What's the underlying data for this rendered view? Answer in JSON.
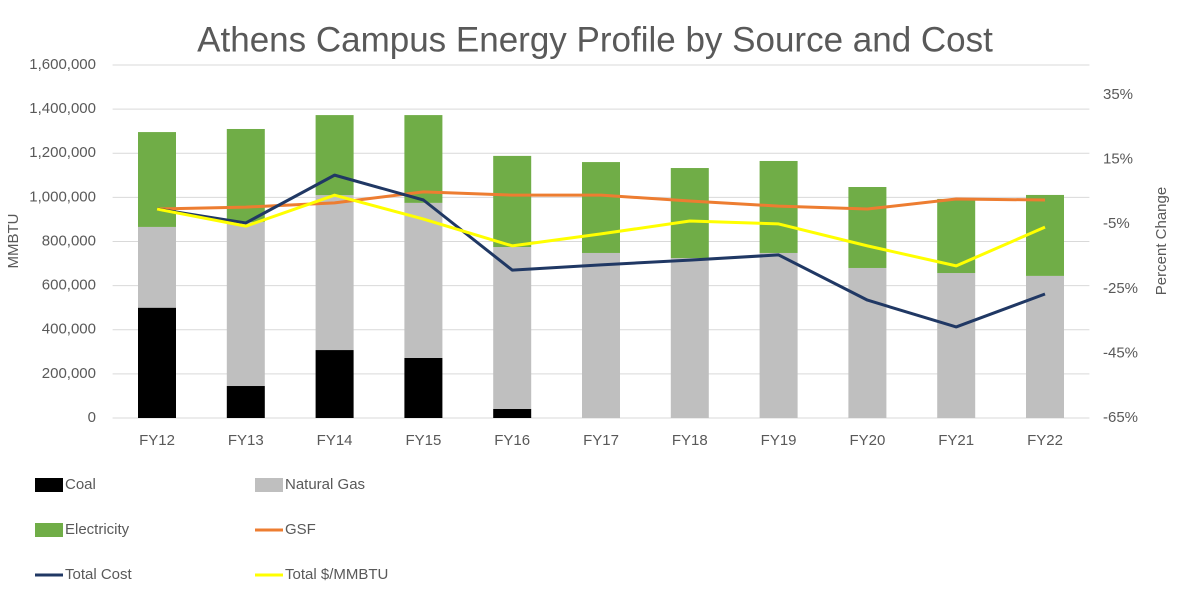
{
  "chart_data": {
    "type": "combo",
    "title": "Athens Campus Energy Profile by Source and Cost",
    "y_label": "MMBTU",
    "y2_label": "Percent Change",
    "categories": [
      "FY12",
      "FY13",
      "FY14",
      "FY15",
      "FY16",
      "FY17",
      "FY18",
      "FY19",
      "FY20",
      "FY21",
      "FY22"
    ],
    "series": [
      {
        "name": "Coal",
        "type": "bar",
        "color": "#000000",
        "values": [
          500000,
          145000,
          308000,
          272000,
          41000,
          0,
          0,
          0,
          0,
          0,
          0
        ]
      },
      {
        "name": "Natural Gas",
        "type": "bar",
        "color": "#bfbfbf",
        "values": [
          366000,
          743000,
          702000,
          703000,
          734000,
          748000,
          725000,
          748000,
          680000,
          657000,
          644000
        ]
      },
      {
        "name": "Electricity",
        "type": "bar",
        "color": "#70ad47",
        "values": [
          430000,
          422000,
          363000,
          398000,
          413000,
          412000,
          408000,
          417000,
          367000,
          336000,
          367000
        ]
      },
      {
        "name": "GSF",
        "type": "line",
        "axis": "y2",
        "color": "#ed7d31",
        "values": [
          -0.3,
          0.3,
          1.6,
          5.0,
          4.0,
          4.0,
          2.2,
          0.6,
          -0.3,
          2.8,
          2.5
        ]
      },
      {
        "name": "Total Cost",
        "type": "line",
        "axis": "y2",
        "color": "#203864",
        "values": [
          -0.3,
          -4.6,
          10.2,
          2.5,
          -19.2,
          -17.6,
          -16.1,
          -14.5,
          -28.5,
          -36.8,
          -26.6
        ]
      },
      {
        "name": "Total $/MMBTU",
        "type": "line",
        "axis": "y2",
        "color": "#ffff00",
        "values": [
          -0.3,
          -5.6,
          4.0,
          -3.4,
          -11.7,
          -8.0,
          -4.0,
          -4.9,
          -11.7,
          -17.9,
          -5.9
        ]
      }
    ],
    "ylim": [
      0,
      1600000
    ],
    "yticks": [
      0,
      {
        "value": 200000,
        "label": "200,000"
      },
      {
        "value": 400000,
        "label": "400,000"
      },
      {
        "value": 600000,
        "label": "600,000"
      },
      {
        "value": 800000,
        "label": "800,000"
      },
      {
        "value": 1000000,
        "label": "1,000,000"
      },
      {
        "value": 1200000,
        "label": "1,200,000"
      },
      {
        "value": 1400000,
        "label": "1,400,000"
      },
      {
        "value": 1600000,
        "label": "1,600,000"
      }
    ],
    "y2lim": [
      -65,
      44.3
    ],
    "y2ticks": [
      {
        "value": -65,
        "label": "-65%"
      },
      {
        "value": -45,
        "label": "-45%"
      },
      {
        "value": -25,
        "label": "-25%"
      },
      {
        "value": -5,
        "label": "-5%"
      },
      {
        "value": 15,
        "label": "15%"
      },
      {
        "value": 35,
        "label": "35%"
      }
    ],
    "grid": true
  }
}
